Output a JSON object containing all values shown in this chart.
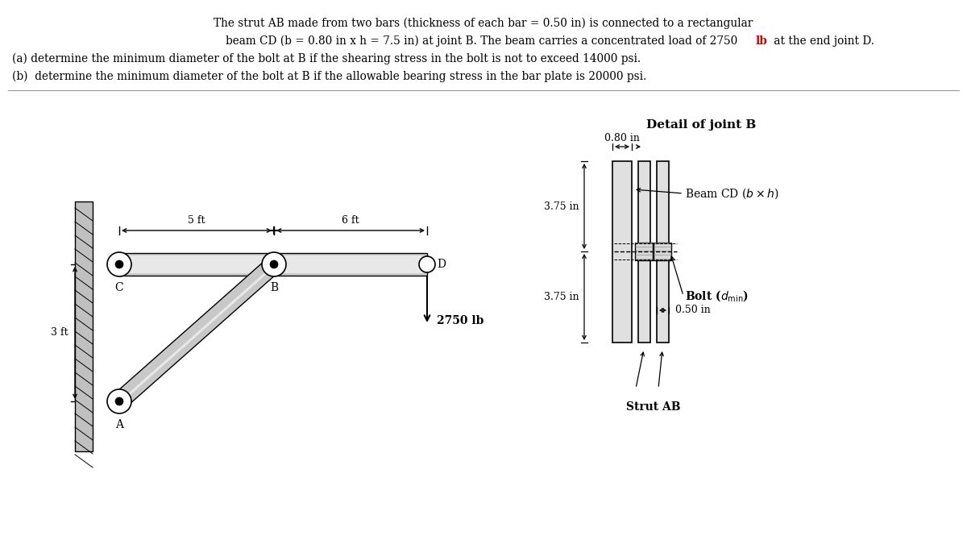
{
  "bg_color": "#ffffff",
  "text_color": "#000000",
  "red_color": "#cc0000",
  "gray_beam": "#cccccc",
  "gray_strut": "#c8c8c8",
  "gray_highlight": "#e8e8e8",
  "gray_plate": "#e0e0e0",
  "gray_wall": "#c0c0c0",
  "detail_title": "Detail of joint B",
  "label_080": "0.80 in",
  "label_375a": "3.75 in",
  "label_375b": "3.75 in",
  "label_050": "0.50 in",
  "label_5ft": "5 ft",
  "label_6ft": "6 ft",
  "label_3ft": "3 ft",
  "label_C": "C",
  "label_B": "B",
  "label_D": "D",
  "label_A": "A",
  "label_load": "2750 lb",
  "label_strutAB": "Strut AB"
}
